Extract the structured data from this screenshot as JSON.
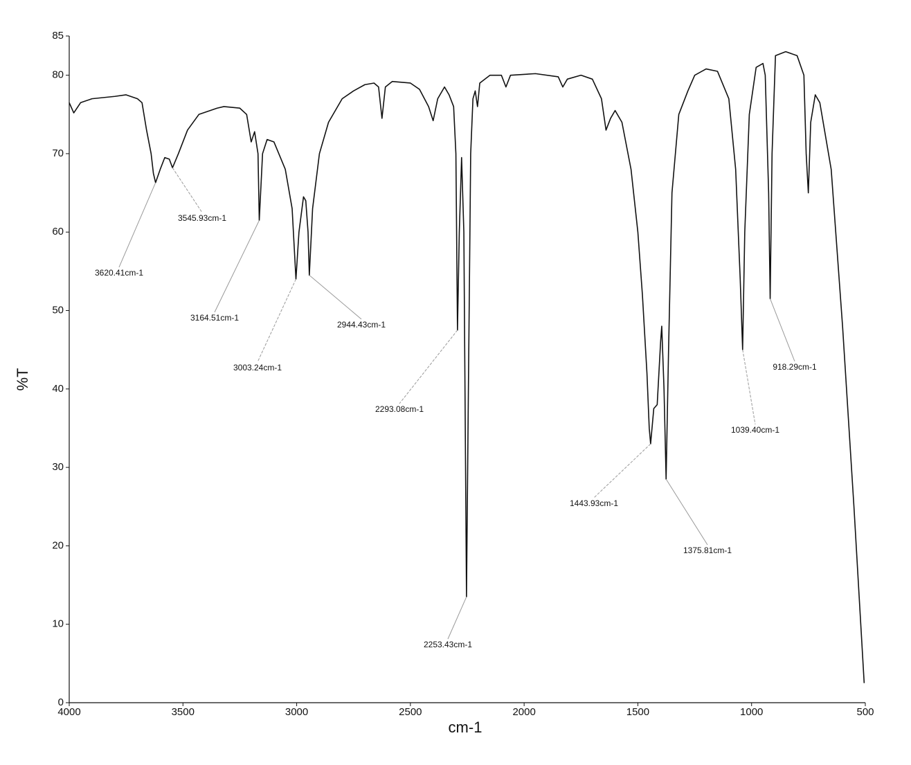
{
  "chart_data": {
    "type": "line",
    "ylabel": "%T",
    "xlabel": "cm-1",
    "color": "#111111",
    "xlim": [
      4000,
      500
    ],
    "ylim": [
      0,
      85
    ],
    "xticks": [
      4000,
      3500,
      3000,
      2500,
      2000,
      1500,
      1000,
      500
    ],
    "yticks": [
      0,
      10,
      20,
      30,
      40,
      50,
      60,
      70,
      80,
      85
    ],
    "x": [
      4000,
      3980,
      3950,
      3900,
      3800,
      3750,
      3700,
      3680,
      3660,
      3640,
      3630,
      3620.41,
      3600,
      3580,
      3560,
      3545.93,
      3520,
      3480,
      3430,
      3350,
      3320,
      3250,
      3220,
      3200,
      3185,
      3170,
      3164.51,
      3150,
      3130,
      3100,
      3050,
      3020,
      3003.24,
      2990,
      2970,
      2960,
      2950,
      2944.43,
      2930,
      2900,
      2860,
      2800,
      2750,
      2700,
      2660,
      2640,
      2625,
      2610,
      2580,
      2500,
      2460,
      2420,
      2400,
      2380,
      2350,
      2330,
      2310,
      2300,
      2293.08,
      2285,
      2275,
      2265,
      2253.43,
      2245,
      2235,
      2225,
      2215,
      2205,
      2195,
      2150,
      2100,
      2080,
      2060,
      1950,
      1850,
      1830,
      1810,
      1750,
      1700,
      1660,
      1640,
      1620,
      1600,
      1570,
      1530,
      1500,
      1480,
      1460,
      1450,
      1443.93,
      1430,
      1415,
      1400,
      1395,
      1385,
      1375.81,
      1365,
      1350,
      1320,
      1280,
      1250,
      1200,
      1150,
      1100,
      1070,
      1050,
      1039.4,
      1030,
      1010,
      980,
      950,
      940,
      925,
      918.29,
      910,
      895,
      850,
      800,
      770,
      760,
      750.5,
      740,
      720,
      700,
      650,
      600,
      550,
      520,
      505
    ],
    "values": [
      76.5,
      75.2,
      76.5,
      77,
      77.3,
      77.5,
      77,
      76.5,
      73,
      70,
      67.5,
      66.3,
      68,
      69.5,
      69.3,
      68.2,
      70,
      73,
      75,
      75.8,
      76,
      75.8,
      75,
      71.5,
      72.8,
      70,
      61.5,
      70,
      71.8,
      71.5,
      68,
      63,
      54,
      60,
      64.5,
      64,
      60,
      54.5,
      63,
      70,
      74,
      77,
      78,
      78.8,
      79,
      78.5,
      74.5,
      78.5,
      79.2,
      79,
      78.2,
      76,
      74.2,
      77,
      78.5,
      77.5,
      76,
      70,
      47.5,
      60,
      69.5,
      60,
      13.5,
      40,
      70,
      77,
      78,
      76,
      79,
      80,
      80,
      78.5,
      80,
      80.2,
      79.8,
      78.5,
      79.5,
      80,
      79.5,
      77,
      73,
      74.5,
      75.5,
      74,
      68,
      60,
      52,
      42,
      35,
      33,
      37.5,
      38,
      46,
      48,
      40,
      28.5,
      45,
      65,
      75,
      78,
      80,
      80.8,
      80.5,
      77,
      68,
      54,
      45,
      60,
      75,
      81,
      81.5,
      80,
      65,
      51.5,
      70,
      82.5,
      83,
      82.5,
      80,
      70,
      65,
      74,
      77.5,
      76.5,
      68,
      48,
      25,
      10,
      2.5
    ],
    "annotations": [
      {
        "label": "3620.41cm-1",
        "x": 3620.41,
        "y": 66.3
      },
      {
        "label": "3545.93cm-1",
        "x": 3545.93,
        "y": 68.2
      },
      {
        "label": "3164.51cm-1",
        "x": 3164.51,
        "y": 61.5
      },
      {
        "label": "3003.24cm-1",
        "x": 3003.24,
        "y": 54
      },
      {
        "label": "2944.43cm-1",
        "x": 2944.43,
        "y": 54.5
      },
      {
        "label": "2293.08cm-1",
        "x": 2293.08,
        "y": 47.5
      },
      {
        "label": "2253.43cm-1",
        "x": 2253.43,
        "y": 13.5
      },
      {
        "label": "1443.93cm-1",
        "x": 1443.93,
        "y": 33
      },
      {
        "label": "1375.81cm-1",
        "x": 1375.81,
        "y": 28.5
      },
      {
        "label": "1039.40cm-1",
        "x": 1039.4,
        "y": 45
      },
      {
        "label": "918.29cm-1",
        "x": 918.29,
        "y": 51.5
      }
    ]
  }
}
